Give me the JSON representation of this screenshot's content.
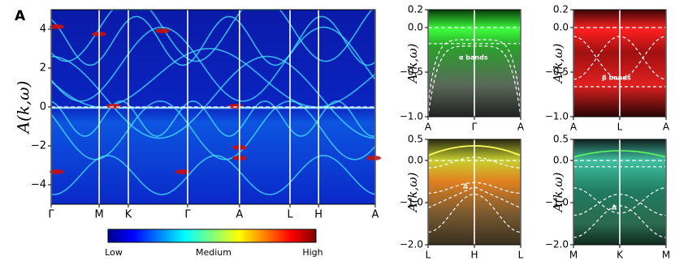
{
  "chart_data": [
    {
      "type": "heatmap",
      "panel_label": "A",
      "ylabel": "A(k,ω)",
      "xlim": [
        0,
        1
      ],
      "xticks": [
        {
          "value": 0,
          "label": "Γ"
        },
        {
          "value": 0.148,
          "label": "M"
        },
        {
          "value": 0.238,
          "label": "K"
        },
        {
          "value": 0.421,
          "label": "Γ"
        },
        {
          "value": 0.581,
          "label": "A"
        },
        {
          "value": 0.737,
          "label": "L"
        },
        {
          "value": 0.825,
          "label": "H"
        },
        {
          "value": 1,
          "label": "A"
        }
      ],
      "ylim": [
        -5,
        5
      ],
      "yticks": [
        {
          "value": -4,
          "label": "−4"
        },
        {
          "value": -2,
          "label": "−2"
        },
        0,
        2,
        4
      ],
      "colorbar_labels": [
        "Low",
        "Medium",
        "High"
      ]
    },
    {
      "type": "heatmap",
      "ylabel": "A(k,ω)",
      "annotation": "α bands",
      "xlim": [
        0,
        1
      ],
      "xticks": [
        {
          "value": 0,
          "label": "A"
        },
        {
          "value": 0.5,
          "label": "Γ"
        },
        {
          "value": 1,
          "label": "A"
        }
      ],
      "ylim": [
        -1,
        0.2
      ],
      "yticks": [
        {
          "value": -1,
          "label": "−1.0"
        },
        {
          "value": -0.5,
          "label": "−0.5"
        },
        {
          "value": 0,
          "label": "0.0"
        },
        0.2
      ]
    },
    {
      "type": "heatmap",
      "ylabel": "A(k,ω)",
      "annotation": "β bands",
      "xlim": [
        0,
        1
      ],
      "xticks": [
        {
          "value": 0,
          "label": "A"
        },
        {
          "value": 0.5,
          "label": "L"
        },
        {
          "value": 1,
          "label": "A"
        }
      ],
      "ylim": [
        -1,
        0.2
      ],
      "yticks": [
        {
          "value": -1,
          "label": "−1.0"
        },
        {
          "value": -0.5,
          "label": "−0.5"
        },
        {
          "value": 0,
          "label": "0.0"
        },
        0.2
      ]
    },
    {
      "type": "heatmap",
      "ylabel": "A(k,ω)",
      "annotation": "Δ",
      "xlim": [
        0,
        1
      ],
      "xticks": [
        {
          "value": 0,
          "label": "L"
        },
        {
          "value": 0.5,
          "label": "H"
        },
        {
          "value": 1,
          "label": "L"
        }
      ],
      "ylim": [
        -2,
        0.5
      ],
      "yticks": [
        {
          "value": -2,
          "label": "−2.0"
        },
        {
          "value": -1,
          "label": "−1.0"
        },
        {
          "value": 0,
          "label": "0.0"
        },
        0.5
      ]
    },
    {
      "type": "heatmap",
      "ylabel": "A(k,ω)",
      "annotation": "Δ",
      "xlim": [
        0,
        1
      ],
      "xticks": [
        {
          "value": 0,
          "label": "M"
        },
        {
          "value": 0.5,
          "label": "K"
        },
        {
          "value": 1,
          "label": "M"
        }
      ],
      "ylim": [
        -2,
        0.5
      ],
      "yticks": [
        {
          "value": -2,
          "label": "−2.0"
        },
        {
          "value": -1,
          "label": "−1.0"
        },
        {
          "value": 0,
          "label": "0.0"
        },
        0.5
      ]
    }
  ]
}
